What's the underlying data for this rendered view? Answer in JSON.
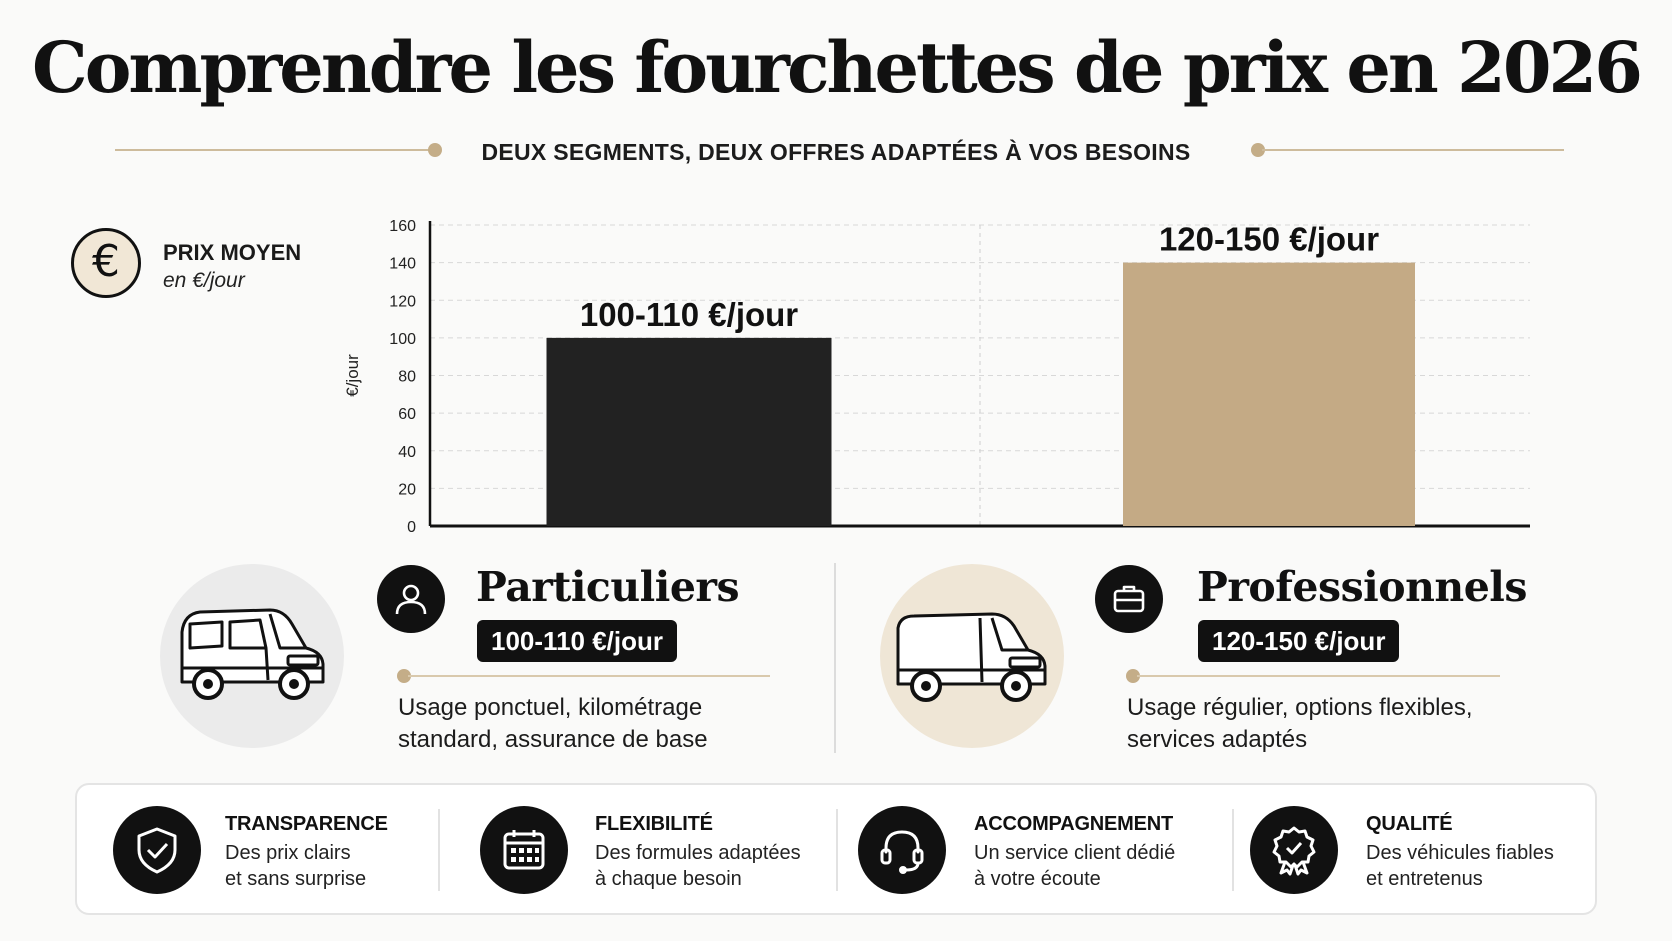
{
  "title": "Comprendre les fourchettes de prix en 2026",
  "subtitle": "DEUX SEGMENTS, DEUX OFFRES ADAPTÉES À VOS BESOINS",
  "legend": {
    "icon": "euro-icon",
    "label": "PRIX MOYEN",
    "sub": "en €/jour"
  },
  "chart_data": {
    "type": "bar",
    "categories": [
      "Particuliers",
      "Professionnels"
    ],
    "values": [
      100,
      140
    ],
    "data_labels": [
      "100-110 €/jour",
      "120-150 €/jour"
    ],
    "colors": [
      "#222222",
      "#c4aa85"
    ],
    "ylabel": "€/jour",
    "xlabel": "",
    "ylim": [
      0,
      160
    ],
    "yticks": [
      0,
      20,
      40,
      60,
      80,
      100,
      120,
      140,
      160
    ],
    "grid": true
  },
  "segments": [
    {
      "icon": "user-icon",
      "title": "Particuliers",
      "price": "100-110 €/jour",
      "desc": "Usage ponctuel, kilométrage standard, assurance de base",
      "circle_color": "#ebebeb"
    },
    {
      "icon": "briefcase-icon",
      "title": "Professionnels",
      "price": "120-150 €/jour",
      "desc": "Usage régulier, options flexibles, services adaptés",
      "circle_color": "#efe6d6"
    }
  ],
  "features": [
    {
      "icon": "shield-check-icon",
      "title": "TRANSPARENCE",
      "line1": "Des prix clairs",
      "line2": "et sans surprise"
    },
    {
      "icon": "calendar-icon",
      "title": "FLEXIBILITÉ",
      "line1": "Des formules adaptées",
      "line2": "à chaque besoin"
    },
    {
      "icon": "headset-icon",
      "title": "ACCOMPAGNEMENT",
      "line1": "Un service client dédié",
      "line2": "à votre écoute"
    },
    {
      "icon": "award-badge-icon",
      "title": "QUALITÉ",
      "line1": "Des véhicules fiables",
      "line2": "et entretenus"
    }
  ]
}
